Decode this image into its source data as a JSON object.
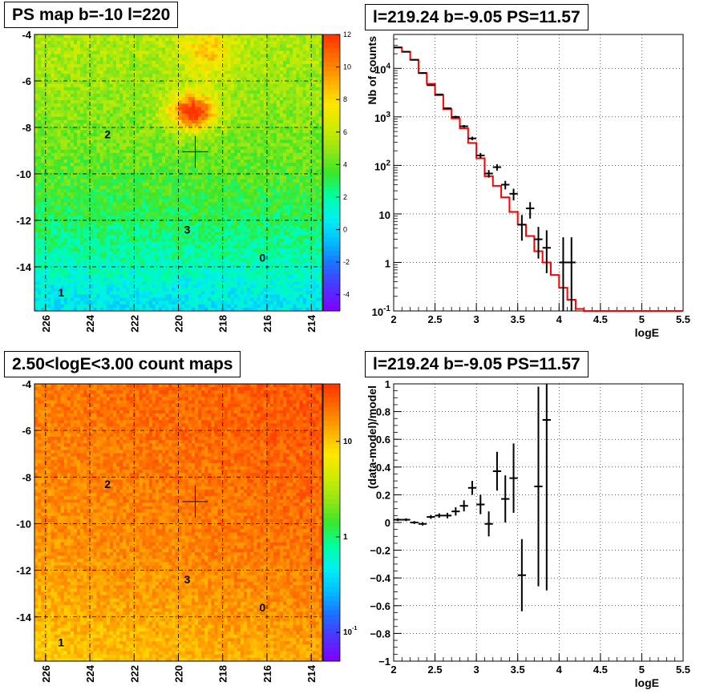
{
  "chart_data": [
    {
      "type": "heatmap",
      "title": "PS map b=-10 l=220",
      "x_ticks": [
        "226",
        "224",
        "222",
        "220",
        "218",
        "216",
        "214"
      ],
      "y_ticks": [
        "-4",
        "-6",
        "-8",
        "-10",
        "-12",
        "-14"
      ],
      "xlim": [
        226.5,
        213.5
      ],
      "ylim": [
        -15.9,
        -4
      ],
      "colorbar": {
        "ticks": [
          "12",
          "10",
          "8",
          "6",
          "4",
          "2",
          "0",
          "-2",
          "-4"
        ],
        "range": [
          -5,
          12
        ]
      },
      "marker": {
        "l": 219.24,
        "b": -9.05
      },
      "annotations": [
        {
          "text": "2",
          "l": 223.2,
          "b": -8.3
        },
        {
          "text": "3",
          "l": 219.6,
          "b": -12.4
        },
        {
          "text": "0",
          "l": 216.2,
          "b": -13.6
        },
        {
          "text": "1",
          "l": 225.3,
          "b": -15.1
        }
      ]
    },
    {
      "type": "line",
      "title": "l=219.24 b=-9.05 PS=11.57",
      "xlabel": "logE",
      "ylabel": "Nb of counts",
      "xlim": [
        2,
        5.5
      ],
      "ylim": [
        0.1,
        50000
      ],
      "yscale": "log",
      "grid": true,
      "x_ticks": [
        "2",
        "2.5",
        "3",
        "3.5",
        "4",
        "4.5",
        "5",
        "5.5"
      ],
      "y_ticks": [
        {
          "label": "10",
          "exp": "-1",
          "value": 0.1
        },
        {
          "label": "1",
          "value": 1
        },
        {
          "label": "10",
          "value": 10
        },
        {
          "label": "10",
          "exp": "2",
          "value": 100
        },
        {
          "label": "10",
          "exp": "3",
          "value": 1000
        },
        {
          "label": "10",
          "exp": "4",
          "value": 10000
        }
      ],
      "series": [
        {
          "style": "step",
          "color": "#ff0000",
          "bin_width": 0.1,
          "x": [
            2.0,
            2.1,
            2.2,
            2.3,
            2.4,
            2.5,
            2.6,
            2.7,
            2.8,
            2.9,
            3.0,
            3.1,
            3.2,
            3.3,
            3.4,
            3.5,
            3.6,
            3.7,
            3.8,
            3.9,
            4.0,
            4.1,
            4.2,
            4.3,
            4.4,
            4.5,
            4.6,
            4.7,
            4.8,
            4.9,
            5.0,
            5.1,
            5.2,
            5.3,
            5.4
          ],
          "values": [
            27000,
            22000,
            15000,
            8000,
            4800,
            2800,
            1450,
            930,
            580,
            290,
            140,
            60,
            38,
            22,
            11,
            6,
            3.5,
            1.7,
            1.0,
            0.55,
            0.3,
            0.17,
            0.11,
            0.1,
            0.1,
            0.1,
            0.1,
            0.1,
            0.1,
            0.1,
            0.1,
            0.1,
            0.1,
            0.1,
            0.1
          ]
        },
        {
          "style": "errorbar",
          "color": "#000000",
          "x": [
            2.05,
            2.15,
            2.25,
            2.35,
            2.45,
            2.55,
            2.65,
            2.75,
            2.85,
            2.95,
            3.05,
            3.15,
            3.25,
            3.35,
            3.45,
            3.55,
            3.65,
            3.75,
            3.85,
            4.05,
            4.15
          ],
          "values": [
            27000,
            22000,
            15000,
            8000,
            4500,
            2900,
            1500,
            1000,
            640,
            360,
            160,
            68,
            92,
            40,
            26,
            6,
            13,
            3,
            2,
            1,
            1
          ],
          "err_low": [
            300,
            250,
            200,
            150,
            100,
            80,
            60,
            50,
            40,
            30,
            20,
            12,
            14,
            8,
            7,
            3.2,
            5,
            1.8,
            1.4,
            0.9,
            0.9
          ],
          "err_high": [
            300,
            250,
            200,
            150,
            100,
            80,
            60,
            50,
            40,
            30,
            20,
            12,
            14,
            8,
            7,
            3.5,
            4.5,
            2.4,
            2.6,
            2.3,
            2.3
          ]
        }
      ]
    },
    {
      "type": "heatmap",
      "title": "2.50<logE<3.00 count maps",
      "x_ticks": [
        "226",
        "224",
        "222",
        "220",
        "218",
        "216",
        "214"
      ],
      "y_ticks": [
        "-4",
        "-6",
        "-8",
        "-10",
        "-12",
        "-14"
      ],
      "xlim": [
        226.5,
        213.5
      ],
      "ylim": [
        -15.9,
        -4
      ],
      "colorbar": {
        "scale": "log",
        "ticks": [
          {
            "label": "10",
            "value": 10
          },
          {
            "label": "1",
            "value": 1
          },
          {
            "label": "10",
            "exp": "-1",
            "value": 0.1
          }
        ]
      },
      "marker": {
        "l": 219.24,
        "b": -9.05
      },
      "annotations": [
        {
          "text": "2",
          "l": 223.2,
          "b": -8.3
        },
        {
          "text": "3",
          "l": 219.6,
          "b": -12.4
        },
        {
          "text": "0",
          "l": 216.2,
          "b": -13.6
        },
        {
          "text": "1",
          "l": 225.3,
          "b": -15.1
        }
      ]
    },
    {
      "type": "scatter",
      "title": "l=219.24 b=-9.05 PS=11.57",
      "xlabel": "logE",
      "ylabel": "(data-model)/model",
      "xlim": [
        2,
        5.5
      ],
      "ylim": [
        -1,
        1
      ],
      "grid": true,
      "x_ticks": [
        "2",
        "2.5",
        "3",
        "3.5",
        "4",
        "4.5",
        "5",
        "5.5"
      ],
      "y_ticks": [
        "-1",
        "-0.8",
        "-0.6",
        "-0.4",
        "-0.2",
        "0",
        "0.2",
        "0.4",
        "0.6",
        "0.8",
        "1"
      ],
      "series": [
        {
          "style": "errorbar",
          "color": "#000000",
          "x": [
            2.05,
            2.15,
            2.25,
            2.35,
            2.45,
            2.55,
            2.65,
            2.75,
            2.85,
            2.95,
            3.05,
            3.15,
            3.25,
            3.35,
            3.45,
            3.55,
            3.75,
            3.85
          ],
          "values": [
            0.02,
            0.02,
            0.0,
            -0.01,
            0.04,
            0.05,
            0.05,
            0.08,
            0.12,
            0.25,
            0.13,
            -0.01,
            0.37,
            0.17,
            0.32,
            -0.38,
            0.26,
            0.74
          ],
          "err": [
            0.01,
            0.01,
            0.01,
            0.012,
            0.014,
            0.016,
            0.02,
            0.03,
            0.04,
            0.05,
            0.07,
            0.09,
            0.14,
            0.17,
            0.25,
            0.26,
            0.72,
            1.23
          ]
        }
      ]
    }
  ]
}
